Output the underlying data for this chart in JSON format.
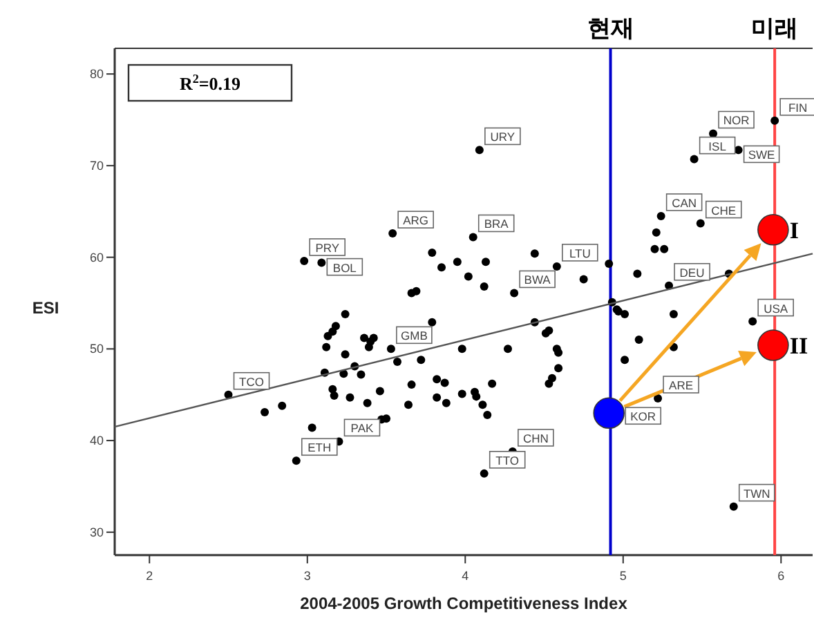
{
  "chart_data": {
    "type": "scatter",
    "xlabel": "2004-2005 Growth Competitiveness Index",
    "ylabel": "ESI",
    "xlim": [
      1.78,
      6.2
    ],
    "ylim": [
      27.5,
      82.8
    ],
    "xticks": [
      2,
      3,
      4,
      5,
      6
    ],
    "yticks": [
      30,
      40,
      50,
      60,
      70,
      80
    ],
    "series": [
      {
        "marker": "circle",
        "color": "#000000",
        "x": [
          3.24,
          3.18,
          3.16,
          3.13,
          3.12,
          3.24,
          3.36,
          3.4,
          3.39,
          3.42,
          3.57,
          3.11,
          3.23,
          3.3,
          3.34,
          3.16,
          3.17,
          3.27,
          3.38,
          3.46,
          3.64,
          3.66,
          3.5,
          3.47,
          2.84,
          2.73,
          3.03,
          3.79,
          4.44,
          4.53,
          4.51,
          3.98,
          4.27,
          4.58,
          4.59,
          3.72,
          4.59,
          4.55,
          4.53,
          3.82,
          3.87,
          4.17,
          3.82,
          3.88,
          3.98,
          4.06,
          4.07,
          4.11,
          4.14,
          5.01,
          4.96,
          5.32,
          5.1,
          5.32,
          5.01,
          3.79,
          3.85,
          3.95,
          4.13,
          4.02,
          4.12,
          4.44,
          3.69,
          4.75,
          4.91,
          5.09,
          5.21,
          5.2,
          5.26,
          5.67,
          4.93,
          4.97,
          3.66,
          2.5,
          2.93,
          3.2,
          2.98,
          3.09,
          3.54,
          4.09,
          4.05,
          4.58,
          4.31,
          3.53,
          5.57,
          5.45,
          5.73,
          5.96,
          5.24,
          5.49,
          5.29,
          5.82,
          5.22,
          4.12,
          4.3,
          5.7
        ],
        "values": [
          53.8,
          52.5,
          51.9,
          51.4,
          50.2,
          49.4,
          51.2,
          50.8,
          50.2,
          51.2,
          48.6,
          47.4,
          47.3,
          48.1,
          47.2,
          45.6,
          44.9,
          44.7,
          44.1,
          45.4,
          43.9,
          46.1,
          42.4,
          42.3,
          43.8,
          43.1,
          41.4,
          52.9,
          52.9,
          52.0,
          51.7,
          50.0,
          50.0,
          50.0,
          49.6,
          48.8,
          47.9,
          46.8,
          46.2,
          46.7,
          46.3,
          46.2,
          44.7,
          44.1,
          45.1,
          45.3,
          44.8,
          43.9,
          42.8,
          53.8,
          54.3,
          53.8,
          51.0,
          50.2,
          48.8,
          60.5,
          58.9,
          59.5,
          59.5,
          57.9,
          56.8,
          60.4,
          56.3,
          57.6,
          59.3,
          58.2,
          62.7,
          60.9,
          60.9,
          58.2,
          55.1,
          54.1,
          56.1,
          45.0,
          37.8,
          39.9,
          59.6,
          59.4,
          62.6,
          71.7,
          62.2,
          59.0,
          56.1,
          50.0,
          73.5,
          70.7,
          71.7,
          74.9,
          64.5,
          63.7,
          56.9,
          53.0,
          44.6,
          36.4,
          38.8,
          32.8
        ]
      },
      {
        "type": "line",
        "color": "#555555",
        "x": [
          1.78,
          6.2
        ],
        "values": [
          41.5,
          60.4
        ]
      },
      {
        "type": "bubble",
        "color": "#0000ff",
        "x": [
          4.91
        ],
        "values": [
          43.0
        ],
        "sizes": [
          1
        ]
      },
      {
        "type": "bubble",
        "color": "#ff0000",
        "x": [
          5.95,
          5.95
        ],
        "values": [
          63.0,
          50.4
        ],
        "sizes": [
          1,
          1
        ]
      }
    ],
    "ref_lines": [
      {
        "axis": "x",
        "value": 4.92,
        "label": "현재",
        "color": "#0000cc"
      },
      {
        "axis": "x",
        "value": 5.96,
        "label": "미래",
        "color": "#ff4444"
      }
    ],
    "annotations": [
      "R$^{2}$=0.19",
      {
        "text": "TCO",
        "x": 2.5,
        "y": 45.0
      },
      {
        "text": "ETH",
        "x": 2.93,
        "y": 37.8
      },
      {
        "text": "PAK",
        "x": 3.2,
        "y": 39.9
      },
      {
        "text": "PRY",
        "x": 2.98,
        "y": 59.6
      },
      {
        "text": "BOL",
        "x": 3.09,
        "y": 59.4
      },
      {
        "text": "ARG",
        "x": 3.54,
        "y": 62.6
      },
      {
        "text": "URY",
        "x": 4.09,
        "y": 71.7
      },
      {
        "text": "BRA",
        "x": 4.05,
        "y": 62.2
      },
      {
        "text": "LTU",
        "x": 4.58,
        "y": 59.0
      },
      {
        "text": "BWA",
        "x": 4.31,
        "y": 56.1
      },
      {
        "text": "GMB",
        "x": 3.53,
        "y": 50.0
      },
      {
        "text": "NOR",
        "x": 5.57,
        "y": 73.5
      },
      {
        "text": "ISL",
        "x": 5.45,
        "y": 70.7
      },
      {
        "text": "SWE",
        "x": 5.73,
        "y": 71.7
      },
      {
        "text": "FIN",
        "x": 5.96,
        "y": 74.9
      },
      {
        "text": "CAN",
        "x": 5.24,
        "y": 64.5
      },
      {
        "text": "CHE",
        "x": 5.49,
        "y": 63.7
      },
      {
        "text": "DEU",
        "x": 5.29,
        "y": 56.9
      },
      {
        "text": "USA",
        "x": 5.82,
        "y": 53.0
      },
      {
        "text": "ARE",
        "x": 5.22,
        "y": 44.6
      },
      {
        "text": "TTO",
        "x": 4.12,
        "y": 36.4
      },
      {
        "text": "CHN",
        "x": 4.3,
        "y": 38.8
      },
      {
        "text": "TWN",
        "x": 5.7,
        "y": 32.8
      },
      {
        "text": "KOR",
        "x": 4.91,
        "y": 43.0
      },
      {
        "text": "I",
        "x": 5.95,
        "y": 63.0
      },
      {
        "text": "II",
        "x": 5.95,
        "y": 50.4
      }
    ]
  }
}
